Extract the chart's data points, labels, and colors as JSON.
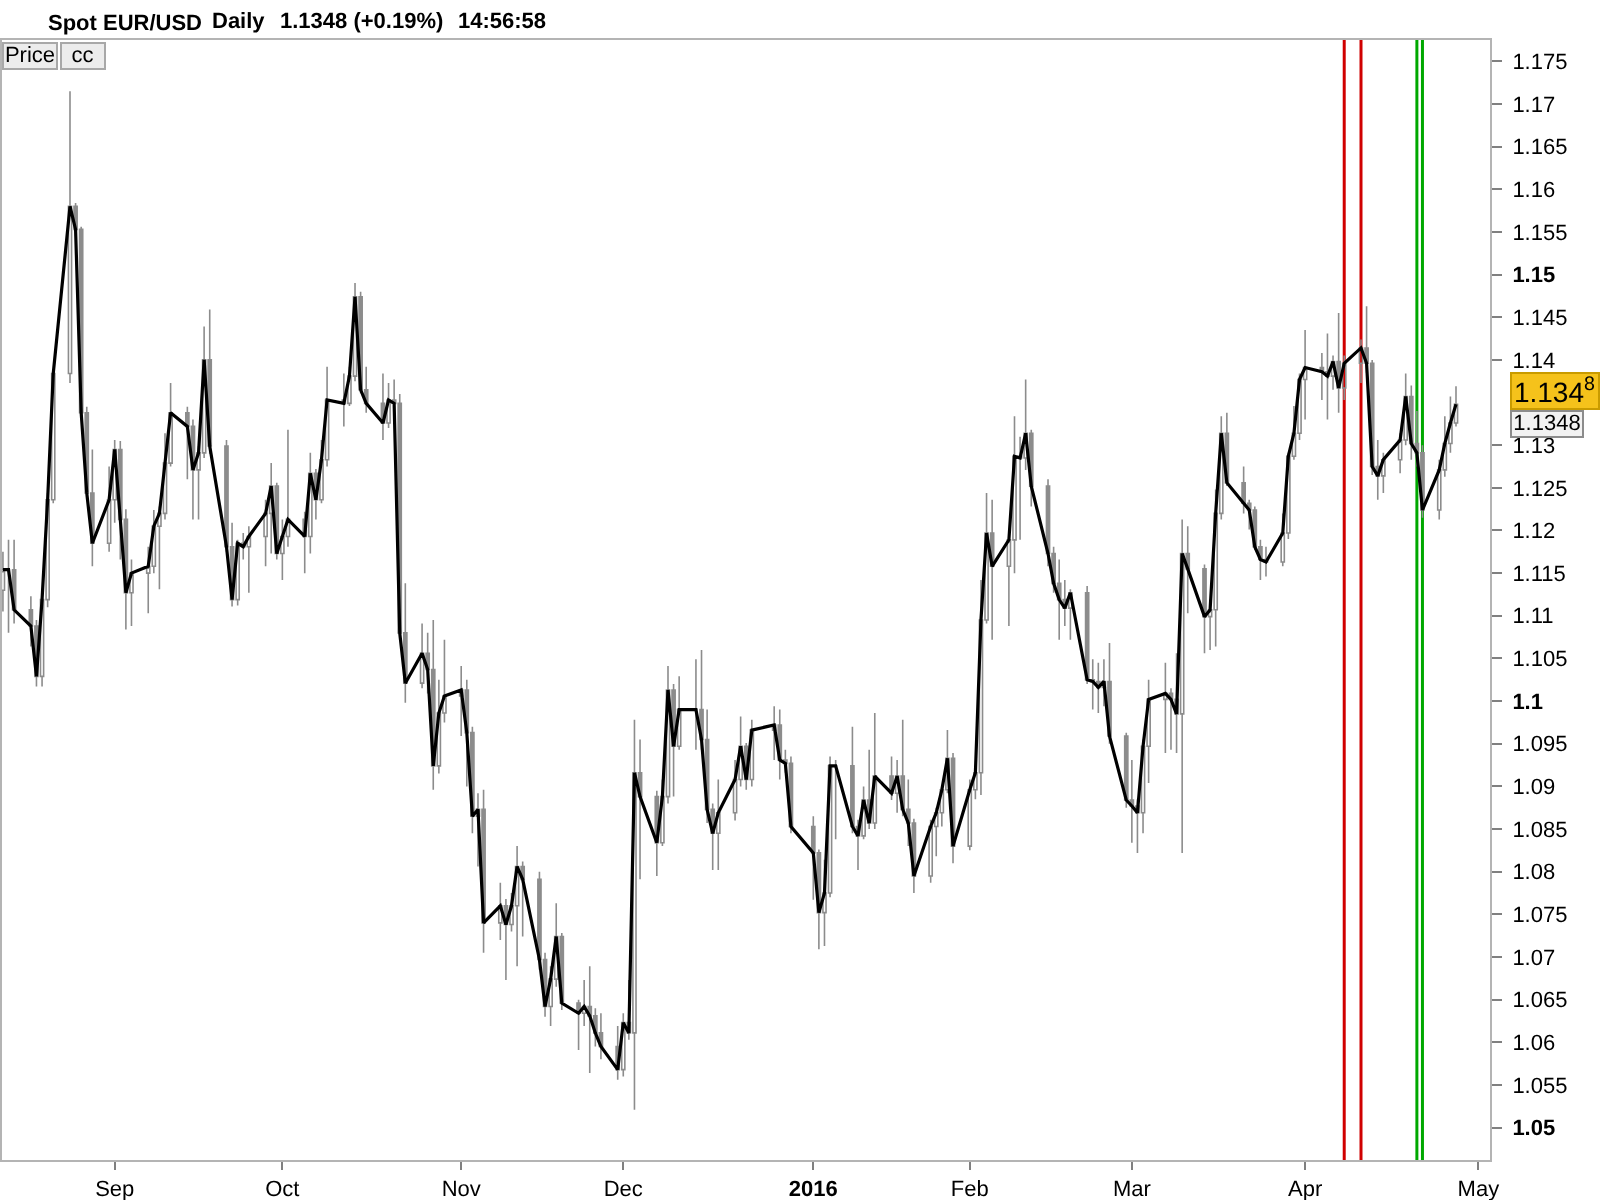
{
  "chart_data": {
    "type": "candlestick",
    "title": "Spot EUR/USD",
    "annotations": [
      "Daily",
      "1.1348 (+0.19%)",
      "14:56:58",
      "Price",
      "cc",
      "1.134$^{8}$",
      "1.1348"
    ],
    "x": [
      "2015-08-12",
      "2015-08-13",
      "2015-08-14",
      "2015-08-17",
      "2015-08-18",
      "2015-08-19",
      "2015-08-20",
      "2015-08-21",
      "2015-08-24",
      "2015-08-25",
      "2015-08-26",
      "2015-08-27",
      "2015-08-28",
      "2015-08-31",
      "2015-09-01",
      "2015-09-02",
      "2015-09-03",
      "2015-09-04",
      "2015-09-07",
      "2015-09-08",
      "2015-09-09",
      "2015-09-10",
      "2015-09-11",
      "2015-09-14",
      "2015-09-15",
      "2015-09-16",
      "2015-09-17",
      "2015-09-18",
      "2015-09-21",
      "2015-09-22",
      "2015-09-23",
      "2015-09-24",
      "2015-09-25",
      "2015-09-28",
      "2015-09-29",
      "2015-09-30",
      "2015-10-01",
      "2015-10-02",
      "2015-10-05",
      "2015-10-06",
      "2015-10-07",
      "2015-10-08",
      "2015-10-09",
      "2015-10-12",
      "2015-10-13",
      "2015-10-14",
      "2015-10-15",
      "2015-10-16",
      "2015-10-19",
      "2015-10-20",
      "2015-10-21",
      "2015-10-22",
      "2015-10-23",
      "2015-10-26",
      "2015-10-27",
      "2015-10-28",
      "2015-10-29",
      "2015-10-30",
      "2015-11-02",
      "2015-11-03",
      "2015-11-04",
      "2015-11-05",
      "2015-11-06",
      "2015-11-09",
      "2015-11-10",
      "2015-11-11",
      "2015-11-12",
      "2015-11-13",
      "2015-11-16",
      "2015-11-17",
      "2015-11-18",
      "2015-11-19",
      "2015-11-20",
      "2015-11-23",
      "2015-11-24",
      "2015-11-25",
      "2015-11-26",
      "2015-11-27",
      "2015-11-30",
      "2015-12-01",
      "2015-12-02",
      "2015-12-03",
      "2015-12-04",
      "2015-12-07",
      "2015-12-08",
      "2015-12-09",
      "2015-12-10",
      "2015-12-11",
      "2015-12-14",
      "2015-12-15",
      "2015-12-16",
      "2015-12-17",
      "2015-12-18",
      "2015-12-21",
      "2015-12-22",
      "2015-12-23",
      "2015-12-24",
      "2015-12-28",
      "2015-12-29",
      "2015-12-30",
      "2015-12-31",
      "2016-01-04",
      "2016-01-05",
      "2016-01-06",
      "2016-01-07",
      "2016-01-08",
      "2016-01-11",
      "2016-01-12",
      "2016-01-13",
      "2016-01-14",
      "2016-01-15",
      "2016-01-18",
      "2016-01-19",
      "2016-01-20",
      "2016-01-21",
      "2016-01-22",
      "2016-01-25",
      "2016-01-26",
      "2016-01-27",
      "2016-01-28",
      "2016-01-29",
      "2016-02-01",
      "2016-02-02",
      "2016-02-03",
      "2016-02-04",
      "2016-02-05",
      "2016-02-08",
      "2016-02-09",
      "2016-02-10",
      "2016-02-11",
      "2016-02-12",
      "2016-02-15",
      "2016-02-16",
      "2016-02-17",
      "2016-02-18",
      "2016-02-19",
      "2016-02-22",
      "2016-02-23",
      "2016-02-24",
      "2016-02-25",
      "2016-02-26",
      "2016-02-29",
      "2016-03-01",
      "2016-03-02",
      "2016-03-03",
      "2016-03-04",
      "2016-03-07",
      "2016-03-08",
      "2016-03-09",
      "2016-03-10",
      "2016-03-11",
      "2016-03-14",
      "2016-03-15",
      "2016-03-16",
      "2016-03-17",
      "2016-03-18",
      "2016-03-21",
      "2016-03-22",
      "2016-03-23",
      "2016-03-24",
      "2016-03-25",
      "2016-03-28",
      "2016-03-29",
      "2016-03-30",
      "2016-03-31",
      "2016-04-01",
      "2016-04-04",
      "2016-04-05",
      "2016-04-06",
      "2016-04-07",
      "2016-04-08",
      "2016-04-11",
      "2016-04-12",
      "2016-04-13",
      "2016-04-14",
      "2016-04-15",
      "2016-04-18",
      "2016-04-19",
      "2016-04-20",
      "2016-04-21",
      "2016-04-22",
      "2016-04-25",
      "2016-04-26",
      "2016-04-27",
      "2016-04-28"
    ],
    "ohlc": [
      [
        1.113,
        1.1175,
        1.1105,
        1.1154
      ],
      [
        1.1154,
        1.1189,
        1.108,
        1.1154
      ],
      [
        1.1154,
        1.1189,
        1.1091,
        1.1107
      ],
      [
        1.1107,
        1.1123,
        1.1064,
        1.1088
      ],
      [
        1.1088,
        1.1095,
        1.1017,
        1.1029
      ],
      [
        1.1029,
        1.1125,
        1.1017,
        1.1119
      ],
      [
        1.1119,
        1.1244,
        1.111,
        1.1236
      ],
      [
        1.1236,
        1.1388,
        1.1232,
        1.1384
      ],
      [
        1.1384,
        1.1715,
        1.1373,
        1.158
      ],
      [
        1.158,
        1.1584,
        1.1545,
        1.1553
      ],
      [
        1.1553,
        1.1556,
        1.133,
        1.1338
      ],
      [
        1.1338,
        1.1345,
        1.1235,
        1.1244
      ],
      [
        1.1244,
        1.1295,
        1.1158,
        1.1185
      ],
      [
        1.1185,
        1.1275,
        1.1175,
        1.1236
      ],
      [
        1.1236,
        1.1306,
        1.1209,
        1.1295
      ],
      [
        1.1295,
        1.1305,
        1.1166,
        1.1213
      ],
      [
        1.1213,
        1.1225,
        1.1084,
        1.1127
      ],
      [
        1.1127,
        1.1166,
        1.1088,
        1.115
      ],
      [
        1.115,
        1.1181,
        1.1103,
        1.1158
      ],
      [
        1.1158,
        1.1224,
        1.115,
        1.1205
      ],
      [
        1.1205,
        1.1228,
        1.1131,
        1.122
      ],
      [
        1.122,
        1.1314,
        1.1213,
        1.1279
      ],
      [
        1.1279,
        1.1373,
        1.1275,
        1.1338
      ],
      [
        1.1338,
        1.1345,
        1.126,
        1.1322
      ],
      [
        1.1322,
        1.133,
        1.1213,
        1.1271
      ],
      [
        1.1271,
        1.1299,
        1.1213,
        1.1291
      ],
      [
        1.1291,
        1.1439,
        1.1285,
        1.14
      ],
      [
        1.14,
        1.1459,
        1.129,
        1.1299
      ],
      [
        1.1299,
        1.1306,
        1.1175,
        1.1181
      ],
      [
        1.1181,
        1.1209,
        1.1111,
        1.1119
      ],
      [
        1.1119,
        1.1189,
        1.1112,
        1.1185
      ],
      [
        1.1185,
        1.1197,
        1.1166,
        1.1181
      ],
      [
        1.1181,
        1.1205,
        1.1127,
        1.1193
      ],
      [
        1.1193,
        1.1236,
        1.1158,
        1.122
      ],
      [
        1.122,
        1.1279,
        1.1173,
        1.1252
      ],
      [
        1.1252,
        1.1256,
        1.1166,
        1.1173
      ],
      [
        1.1173,
        1.1213,
        1.1142,
        1.1193
      ],
      [
        1.1193,
        1.1318,
        1.1181,
        1.1213
      ],
      [
        1.1213,
        1.1222,
        1.115,
        1.1193
      ],
      [
        1.1193,
        1.1291,
        1.1173,
        1.1267
      ],
      [
        1.1267,
        1.1272,
        1.1213,
        1.1236
      ],
      [
        1.1236,
        1.1306,
        1.1232,
        1.1283
      ],
      [
        1.1283,
        1.1392,
        1.1275,
        1.1353
      ],
      [
        1.1353,
        1.1384,
        1.1322,
        1.1349
      ],
      [
        1.1349,
        1.1392,
        1.1346,
        1.1381
      ],
      [
        1.1381,
        1.149,
        1.1375,
        1.1474
      ],
      [
        1.1474,
        1.148,
        1.1361,
        1.1365
      ],
      [
        1.1365,
        1.1392,
        1.1338,
        1.1349
      ],
      [
        1.1349,
        1.1384,
        1.1306,
        1.1326
      ],
      [
        1.1326,
        1.1373,
        1.132,
        1.1353
      ],
      [
        1.1353,
        1.1377,
        1.133,
        1.1349
      ],
      [
        1.1349,
        1.136,
        1.1072,
        1.108
      ],
      [
        1.108,
        1.1138,
        1.0998,
        1.1021
      ],
      [
        1.1021,
        1.1091,
        1.1015,
        1.1056
      ],
      [
        1.1056,
        1.108,
        1.1009,
        1.1037
      ],
      [
        1.1037,
        1.1095,
        1.0896,
        1.0924
      ],
      [
        1.0924,
        1.1025,
        1.0915,
        1.0986
      ],
      [
        1.0986,
        1.1072,
        1.0975,
        1.1006
      ],
      [
        1.1006,
        1.1041,
        1.0959,
        1.1013
      ],
      [
        1.1013,
        1.1025,
        1.09,
        1.0963
      ],
      [
        1.0963,
        1.097,
        1.0845,
        1.0865
      ],
      [
        1.0865,
        1.0892,
        1.0806,
        1.0873
      ],
      [
        1.0873,
        1.0896,
        1.0705,
        1.074
      ],
      [
        1.074,
        1.0787,
        1.072,
        1.076
      ],
      [
        1.076,
        1.0768,
        1.0673,
        1.0738
      ],
      [
        1.0738,
        1.0775,
        1.073,
        1.076
      ],
      [
        1.076,
        1.083,
        1.0689,
        1.0806
      ],
      [
        1.0806,
        1.0812,
        1.0724,
        1.0791
      ],
      [
        1.0791,
        1.08,
        1.0685,
        1.0697
      ],
      [
        1.0697,
        1.0705,
        1.063,
        1.0642
      ],
      [
        1.0642,
        1.0689,
        1.0619,
        1.0674
      ],
      [
        1.0674,
        1.0763,
        1.0665,
        1.0724
      ],
      [
        1.0724,
        1.0728,
        1.0638,
        1.0646
      ],
      [
        1.0646,
        1.065,
        1.0591,
        1.0634
      ],
      [
        1.0634,
        1.0673,
        1.0619,
        1.0642
      ],
      [
        1.0642,
        1.0689,
        1.0564,
        1.0631
      ],
      [
        1.0631,
        1.064,
        1.0595,
        1.0611
      ],
      [
        1.0611,
        1.0634,
        1.058,
        1.0595
      ],
      [
        1.0595,
        1.0619,
        1.0556,
        1.0568
      ],
      [
        1.0568,
        1.0634,
        1.056,
        1.0623
      ],
      [
        1.0623,
        1.0673,
        1.0603,
        1.0611
      ],
      [
        1.0611,
        1.0978,
        1.0521,
        1.0916
      ],
      [
        1.0916,
        1.0955,
        1.0791,
        1.0888
      ],
      [
        1.0888,
        1.0895,
        1.0795,
        1.0834
      ],
      [
        1.0834,
        1.0908,
        1.083,
        1.0888
      ],
      [
        1.0888,
        1.1041,
        1.088,
        1.1013
      ],
      [
        1.1013,
        1.102,
        1.0888,
        1.0947
      ],
      [
        1.0947,
        1.1029,
        1.0943,
        1.099
      ],
      [
        1.099,
        1.1049,
        1.0943,
        1.099
      ],
      [
        1.099,
        1.106,
        1.0943,
        1.0955
      ],
      [
        1.0955,
        1.099,
        1.0857,
        1.0873
      ],
      [
        1.0873,
        1.088,
        1.0802,
        1.0845
      ],
      [
        1.0845,
        1.0908,
        1.0802,
        1.0869
      ],
      [
        1.0869,
        1.0931,
        1.086,
        1.0908
      ],
      [
        1.0908,
        1.0982,
        1.09,
        1.0947
      ],
      [
        1.0947,
        1.0951,
        1.0896,
        1.0908
      ],
      [
        1.0908,
        1.0978,
        1.09,
        1.0966
      ],
      [
        1.0966,
        1.0994,
        1.0931,
        1.0972
      ],
      [
        1.0972,
        1.099,
        1.0908,
        1.0931
      ],
      [
        1.0931,
        1.0943,
        1.0916,
        1.0927
      ],
      [
        1.0927,
        1.0935,
        1.0845,
        1.0853
      ],
      [
        1.0853,
        1.0865,
        1.0767,
        1.0822
      ],
      [
        1.0822,
        1.0826,
        1.0709,
        1.0752
      ],
      [
        1.0752,
        1.0814,
        1.0713,
        1.0775
      ],
      [
        1.0775,
        1.0935,
        1.077,
        1.0924
      ],
      [
        1.0924,
        1.0931,
        1.0838,
        1.0924
      ],
      [
        1.0924,
        1.097,
        1.0845,
        1.0853
      ],
      [
        1.0853,
        1.0861,
        1.0802,
        1.0842
      ],
      [
        1.0842,
        1.09,
        1.0838,
        1.0884
      ],
      [
        1.0884,
        1.0943,
        1.085,
        1.0857
      ],
      [
        1.0857,
        1.0986,
        1.085,
        1.0912
      ],
      [
        1.0912,
        1.0935,
        1.0884,
        1.0892
      ],
      [
        1.0892,
        1.0931,
        1.0869,
        1.0912
      ],
      [
        1.0912,
        1.0978,
        1.0865,
        1.0873
      ],
      [
        1.0873,
        1.0908,
        1.083,
        1.0857
      ],
      [
        1.0857,
        1.0862,
        1.0775,
        1.0795
      ],
      [
        1.0795,
        1.0861,
        1.0787,
        1.0853
      ],
      [
        1.0853,
        1.0875,
        1.0818,
        1.0869
      ],
      [
        1.0869,
        1.09,
        1.0853,
        1.0896
      ],
      [
        1.0896,
        1.0966,
        1.0892,
        1.0933
      ],
      [
        1.0933,
        1.0939,
        1.081,
        1.083
      ],
      [
        1.083,
        1.0908,
        1.0825,
        1.0896
      ],
      [
        1.0896,
        1.0924,
        1.0885,
        1.0916
      ],
      [
        1.0916,
        1.1142,
        1.089,
        1.1095
      ],
      [
        1.1095,
        1.1244,
        1.1091,
        1.1197
      ],
      [
        1.1197,
        1.1236,
        1.1072,
        1.1158
      ],
      [
        1.1158,
        1.1197,
        1.1088,
        1.1189
      ],
      [
        1.1189,
        1.1334,
        1.115,
        1.1287
      ],
      [
        1.1287,
        1.131,
        1.1189,
        1.1285
      ],
      [
        1.1285,
        1.1377,
        1.1271,
        1.1314
      ],
      [
        1.1314,
        1.1318,
        1.1228,
        1.1252
      ],
      [
        1.1252,
        1.126,
        1.1158,
        1.1173
      ],
      [
        1.1173,
        1.1181,
        1.1127,
        1.1138
      ],
      [
        1.1138,
        1.1166,
        1.1072,
        1.1119
      ],
      [
        1.1119,
        1.1142,
        1.1088,
        1.1109
      ],
      [
        1.1109,
        1.1131,
        1.1072,
        1.1127
      ],
      [
        1.1127,
        1.1135,
        1.102,
        1.1025
      ],
      [
        1.1025,
        1.1049,
        1.099,
        1.1023
      ],
      [
        1.1023,
        1.1045,
        1.0986,
        1.1016
      ],
      [
        1.1016,
        1.1049,
        1.0994,
        1.1023
      ],
      [
        1.1023,
        1.1068,
        1.095,
        1.0959
      ],
      [
        1.0959,
        1.0963,
        1.0875,
        1.0884
      ],
      [
        1.0884,
        1.0931,
        1.0834,
        1.0877
      ],
      [
        1.0877,
        1.0885,
        1.0822,
        1.0869
      ],
      [
        1.0869,
        1.0955,
        1.0845,
        1.0947
      ],
      [
        1.0947,
        1.1025,
        1.0904,
        1.1002
      ],
      [
        1.1002,
        1.1045,
        1.0939,
        1.1009
      ],
      [
        1.1009,
        1.1015,
        1.0943,
        1.1002
      ],
      [
        1.1002,
        1.1056,
        1.0939,
        1.0985
      ],
      [
        1.0985,
        1.1213,
        1.0822,
        1.1173
      ],
      [
        1.1173,
        1.1205,
        1.1103,
        1.1155
      ],
      [
        1.1155,
        1.116,
        1.1056,
        1.1099
      ],
      [
        1.1099,
        1.1119,
        1.106,
        1.1107
      ],
      [
        1.1107,
        1.1248,
        1.1064,
        1.122
      ],
      [
        1.122,
        1.1334,
        1.1213,
        1.1314
      ],
      [
        1.1314,
        1.1338,
        1.1252,
        1.1256
      ],
      [
        1.1256,
        1.1275,
        1.122,
        1.1232
      ],
      [
        1.1232,
        1.1236,
        1.1201,
        1.1224
      ],
      [
        1.1224,
        1.1228,
        1.1177,
        1.1181
      ],
      [
        1.1181,
        1.1189,
        1.1142,
        1.1166
      ],
      [
        1.1166,
        1.1181,
        1.1146,
        1.1163
      ],
      [
        1.1163,
        1.122,
        1.1158,
        1.1197
      ],
      [
        1.1197,
        1.1291,
        1.119,
        1.1287
      ],
      [
        1.1287,
        1.1346,
        1.1283,
        1.1314
      ],
      [
        1.1314,
        1.1384,
        1.1306,
        1.1377
      ],
      [
        1.1377,
        1.1435,
        1.133,
        1.1391
      ],
      [
        1.1391,
        1.1408,
        1.1353,
        1.1386
      ],
      [
        1.1386,
        1.1431,
        1.133,
        1.1381
      ],
      [
        1.1381,
        1.1405,
        1.1365,
        1.1398
      ],
      [
        1.1398,
        1.1455,
        1.1338,
        1.1367
      ],
      [
        1.1367,
        1.1405,
        1.1353,
        1.1396
      ],
      [
        1.1396,
        1.1424,
        1.1373,
        1.1414
      ],
      [
        1.1414,
        1.1463,
        1.1385,
        1.1396
      ],
      [
        1.1396,
        1.14,
        1.1265,
        1.1275
      ],
      [
        1.1275,
        1.1306,
        1.1236,
        1.1264
      ],
      [
        1.1264,
        1.1291,
        1.1244,
        1.1283
      ],
      [
        1.1283,
        1.1314,
        1.1267,
        1.1306
      ],
      [
        1.1306,
        1.1384,
        1.13,
        1.1357
      ],
      [
        1.1357,
        1.137,
        1.1283,
        1.1302
      ],
      [
        1.1302,
        1.134,
        1.1275,
        1.1291
      ],
      [
        1.1291,
        1.13,
        1.1215,
        1.1224
      ],
      [
        1.1224,
        1.1283,
        1.1213,
        1.1271
      ],
      [
        1.1271,
        1.1334,
        1.1263,
        1.1302
      ],
      [
        1.1302,
        1.1357,
        1.1291,
        1.1326
      ],
      [
        1.1326,
        1.1369,
        1.1322,
        1.1348
      ]
    ],
    "color": "#8c8c8c",
    "series": [
      {
        "type": "line",
        "color": "#000000",
        "values": [
          1.1154,
          1.1154,
          1.1107,
          1.1088,
          1.1029,
          1.1119,
          1.1236,
          1.1384,
          1.158,
          1.1553,
          1.1338,
          1.1244,
          1.1185,
          1.1236,
          1.1295,
          1.1213,
          1.1127,
          1.115,
          1.1158,
          1.1205,
          1.122,
          1.1279,
          1.1338,
          1.1322,
          1.1271,
          1.1291,
          1.14,
          1.1299,
          1.1181,
          1.1119,
          1.1185,
          1.1181,
          1.1193,
          1.122,
          1.1252,
          1.1173,
          1.1193,
          1.1213,
          1.1193,
          1.1267,
          1.1236,
          1.1283,
          1.1353,
          1.1349,
          1.1381,
          1.1474,
          1.1365,
          1.1349,
          1.1326,
          1.1353,
          1.1349,
          1.108,
          1.1021,
          1.1056,
          1.1037,
          1.0924,
          1.0986,
          1.1006,
          1.1013,
          1.0963,
          1.0865,
          1.0873,
          1.074,
          1.076,
          1.0738,
          1.076,
          1.0806,
          1.0791,
          1.0697,
          1.0642,
          1.0674,
          1.0724,
          1.0646,
          1.0634,
          1.0642,
          1.0631,
          1.0611,
          1.0595,
          1.0568,
          1.0623,
          1.0611,
          1.0916,
          1.0888,
          1.0834,
          1.0888,
          1.1013,
          1.0947,
          1.099,
          1.099,
          1.0955,
          1.0873,
          1.0845,
          1.0869,
          1.0908,
          1.0947,
          1.0908,
          1.0966,
          1.0972,
          1.0931,
          1.0927,
          1.0853,
          1.0822,
          1.0752,
          1.0775,
          1.0924,
          1.0924,
          1.0853,
          1.0842,
          1.0884,
          1.0857,
          1.0912,
          1.0892,
          1.0912,
          1.0873,
          1.0857,
          1.0795,
          1.0853,
          1.0869,
          1.0896,
          1.0933,
          1.083,
          1.0896,
          1.0916,
          1.1095,
          1.1197,
          1.1158,
          1.1189,
          1.1287,
          1.1285,
          1.1314,
          1.1252,
          1.1173,
          1.1138,
          1.1119,
          1.1109,
          1.1127,
          1.1025,
          1.1023,
          1.1016,
          1.1023,
          1.0959,
          1.0884,
          1.0877,
          1.0869,
          1.0947,
          1.1002,
          1.1009,
          1.1002,
          1.0985,
          1.1173,
          1.1155,
          1.1099,
          1.1107,
          1.122,
          1.1314,
          1.1256,
          1.1232,
          1.1224,
          1.1181,
          1.1166,
          1.1163,
          1.1197,
          1.1287,
          1.1314,
          1.1377,
          1.1391,
          1.1386,
          1.1381,
          1.1398,
          1.1367,
          1.1396,
          1.1414,
          1.1396,
          1.1275,
          1.1264,
          1.1283,
          1.1306,
          1.1357,
          1.1302,
          1.1291,
          1.1224,
          1.1271,
          1.1302,
          1.1326,
          1.1348
        ]
      }
    ],
    "xlim": [
      "2015-08-11T20:00",
      "2016-05-04T02:00"
    ],
    "xticks": [
      {
        "value": "2015-09-01",
        "label": "Sep"
      },
      {
        "value": "2015-10-01",
        "label": "Oct"
      },
      {
        "value": "2015-11-02",
        "label": "Nov"
      },
      {
        "value": "2015-12-01",
        "label": "Dec"
      },
      {
        "value": "2016-01-04",
        "label": "2016"
      },
      {
        "value": "2016-02-01",
        "label": "Feb"
      },
      {
        "value": "2016-03-01",
        "label": "Mar"
      },
      {
        "value": "2016-04-01",
        "label": "Apr"
      },
      {
        "value": "2016-05-02",
        "label": "May"
      }
    ],
    "ylim": [
      1.0462,
      1.1775
    ],
    "yticks": [
      1.05,
      1.055,
      1.06,
      1.065,
      1.07,
      1.075,
      1.08,
      1.085,
      1.09,
      1.095,
      1.1,
      1.105,
      1.11,
      1.115,
      1.12,
      1.125,
      1.13,
      1.14,
      1.145,
      1.15,
      1.155,
      1.16,
      1.165,
      1.17,
      1.175
    ],
    "ref_lines": [
      {
        "axis": "x",
        "value": "2016-04-08",
        "color": "#d00000"
      },
      {
        "axis": "x",
        "value": "2016-04-11",
        "color": "#d00000"
      },
      {
        "axis": "x",
        "value": "2016-04-21",
        "color": "#00a800"
      },
      {
        "axis": "x",
        "value": "2016-04-22",
        "color": "#00a800"
      }
    ]
  }
}
